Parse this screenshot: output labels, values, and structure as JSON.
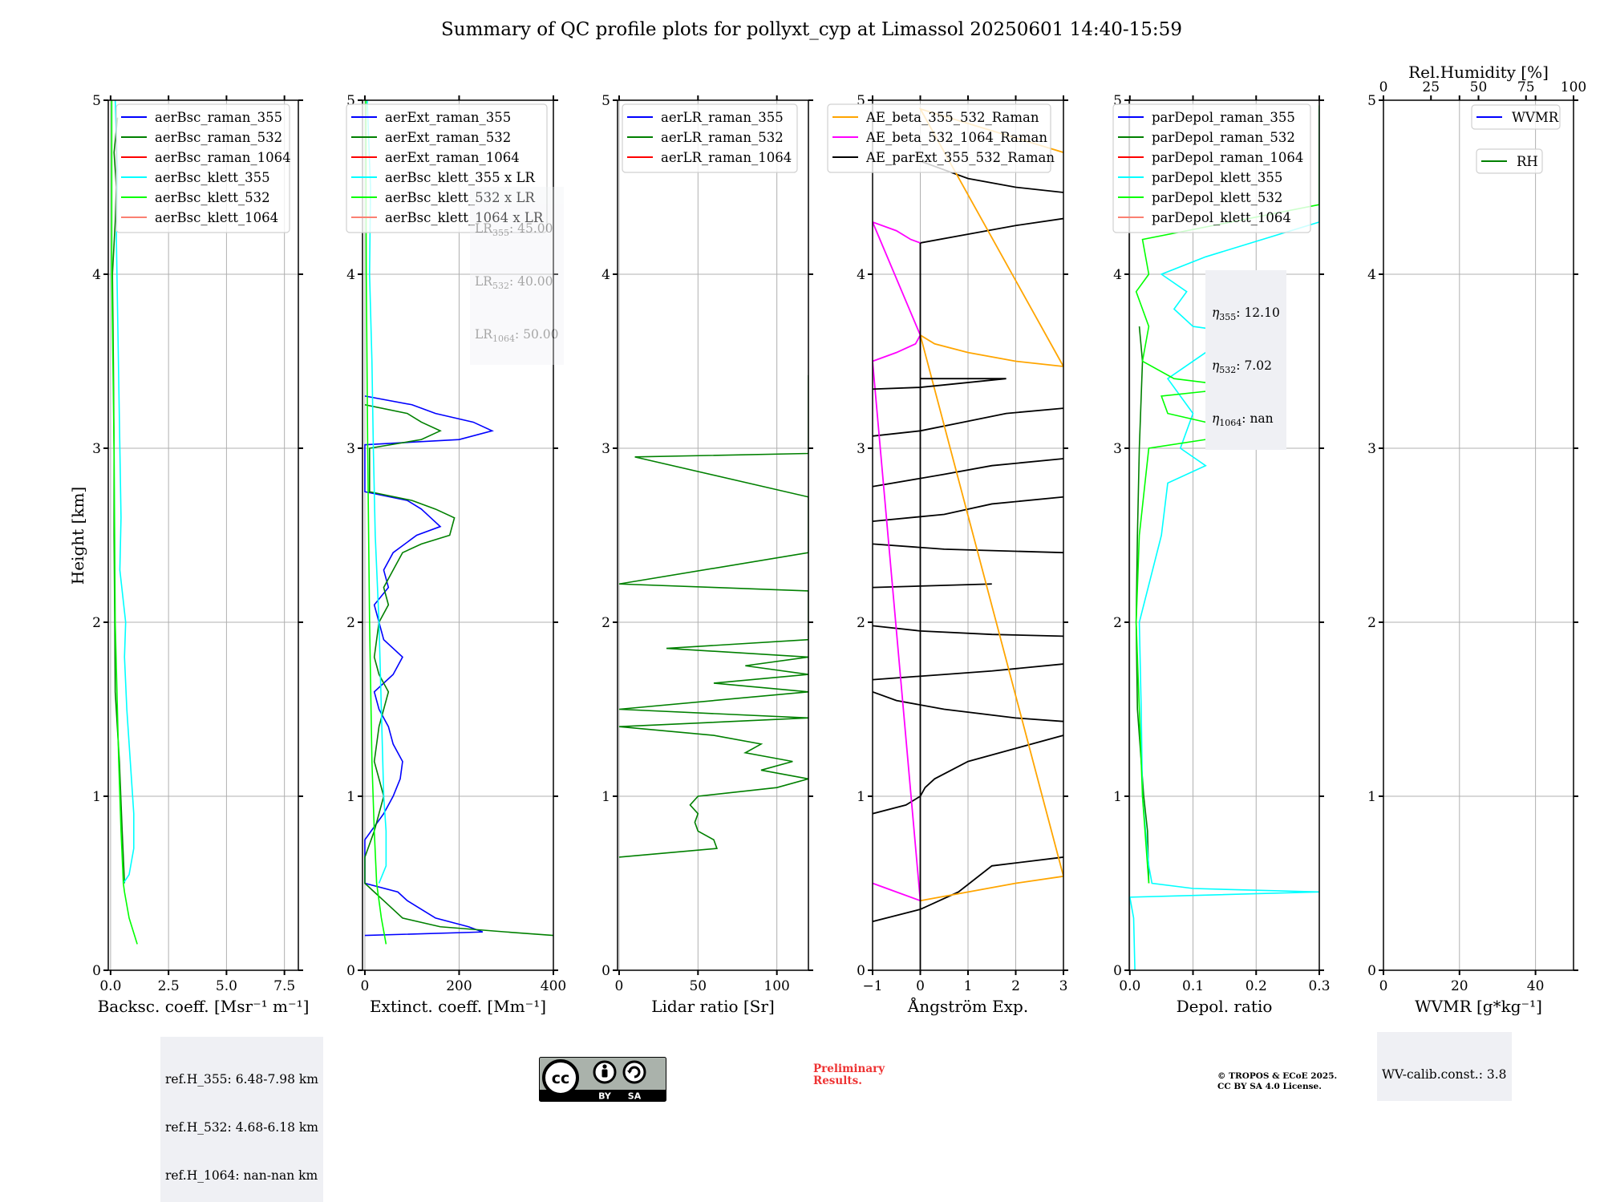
{
  "title": "Summary of QC profile plots for pollyxt_cyp at Limassol 20250601 14:40-15:59",
  "ylabel": "Height [km]",
  "colors": {
    "blue": "#0000ff",
    "green": "#008000",
    "red": "#ff0000",
    "cyan": "#00ffff",
    "lime": "#00ff00",
    "salmon": "#fa8072",
    "orange": "#ffa500",
    "magenta": "#ff00ff",
    "black": "#000000",
    "grid": "#b0b0b0",
    "prelim": "#ee3333",
    "infobox_bg": "#eff0f4"
  },
  "info": {
    "ref_h": [
      "ref.H_355: 6.48-7.98 km",
      "ref.H_532: 4.68-6.18 km",
      "ref.H_1064: nan-nan km"
    ],
    "eta": [
      {
        "label": "η",
        "sub": "355",
        "value": ": 12.10"
      },
      {
        "label": "η",
        "sub": "532",
        "value": ": 7.02"
      },
      {
        "label": "η",
        "sub": "1064",
        "value": ": nan"
      }
    ],
    "lr_fixed": [
      {
        "label": "LR",
        "sub": "355",
        "value": ": 45.00"
      },
      {
        "label": "LR",
        "sub": "532",
        "value": ": 40.00"
      },
      {
        "label": "LR",
        "sub": "1064",
        "value": ": 50.00"
      }
    ],
    "wv_calib": "WV-calib.const.: 3.8",
    "preliminary": [
      "Preliminary",
      "Results."
    ],
    "copyright": [
      "© TROPOS & ECoE 2025.",
      "CC BY SA 4.0 License."
    ],
    "cc_badge": {
      "cc": "cc",
      "by": "BY",
      "sa": "SA"
    }
  },
  "chart_data": [
    {
      "type": "line",
      "panel": "backscatter",
      "xlabel": "Backsc. coeff. [Msr⁻¹ m⁻¹]",
      "xlim": [
        -0.1,
        8.1
      ],
      "ylim": [
        0,
        5
      ],
      "xticks": [
        0.0,
        2.5,
        5.0,
        7.5
      ],
      "xticklabels": [
        "0.0",
        "2.5",
        "5.0",
        "7.5"
      ],
      "yticks": [
        0,
        1,
        2,
        3,
        4,
        5
      ],
      "grid": true,
      "legend": "upper-right",
      "series": [
        {
          "name": "aerBsc_raman_355",
          "color": "blue",
          "y": [],
          "x": []
        },
        {
          "name": "aerBsc_raman_532",
          "color": "green",
          "y": [
            0.5,
            0.8,
            1.2,
            1.6,
            2.0,
            2.5,
            3.0,
            3.5,
            4.0,
            4.3,
            4.5,
            4.7,
            4.9
          ],
          "x": [
            0.6,
            0.5,
            0.38,
            0.2,
            0.18,
            0.15,
            0.15,
            0.12,
            0.08,
            0.2,
            0.25,
            0.15,
            0.3
          ]
        },
        {
          "name": "aerBsc_raman_1064",
          "color": "red",
          "y": [],
          "x": []
        },
        {
          "name": "aerBsc_klett_355",
          "color": "cyan",
          "y": [
            0.5,
            0.55,
            0.7,
            0.9,
            1.2,
            1.5,
            1.8,
            2.0,
            2.3,
            2.6,
            3.0,
            3.4,
            3.8,
            4.2,
            4.6,
            5.0
          ],
          "x": [
            0.55,
            0.8,
            1.0,
            1.0,
            0.85,
            0.7,
            0.6,
            0.65,
            0.4,
            0.45,
            0.4,
            0.35,
            0.3,
            0.25,
            0.3,
            0.2
          ]
        },
        {
          "name": "aerBsc_klett_532",
          "color": "lime",
          "y": [
            0.15,
            0.3,
            0.45,
            0.5,
            0.8,
            1.2,
            2.0,
            3.0,
            4.0,
            5.0
          ],
          "x": [
            1.15,
            0.8,
            0.6,
            0.55,
            0.45,
            0.35,
            0.2,
            0.15,
            0.05,
            0.05
          ]
        },
        {
          "name": "aerBsc_klett_1064",
          "color": "salmon",
          "y": [],
          "x": []
        }
      ]
    },
    {
      "type": "line",
      "panel": "extinction",
      "xlabel": "Extinct. coeff. [Mm⁻¹]",
      "xlim": [
        -5,
        400
      ],
      "ylim": [
        0,
        5
      ],
      "xticks": [
        0,
        200,
        400
      ],
      "xticklabels": [
        "0",
        "200",
        "400"
      ],
      "yticks": [
        0,
        1,
        2,
        3,
        4,
        5
      ],
      "grid": true,
      "legend": "upper-right",
      "series": [
        {
          "name": "aerExt_raman_355",
          "color": "blue",
          "y": [
            0.2,
            0.22,
            0.25,
            0.3,
            0.35,
            0.4,
            0.45,
            0.5,
            0.75,
            0.9,
            1.0,
            1.1,
            1.2,
            1.3,
            1.4,
            1.5,
            1.6,
            1.7,
            1.8,
            1.9,
            2.0,
            2.1,
            2.2,
            2.3,
            2.4,
            2.5,
            2.55,
            2.6,
            2.65,
            2.7,
            2.75,
            3.02,
            3.05,
            3.1,
            3.15,
            3.2,
            3.25,
            3.3
          ],
          "x": [
            0,
            250,
            220,
            150,
            120,
            90,
            70,
            0,
            0,
            40,
            60,
            75,
            80,
            60,
            50,
            30,
            20,
            60,
            80,
            40,
            30,
            20,
            50,
            40,
            60,
            110,
            160,
            140,
            120,
            90,
            0,
            0,
            200,
            270,
            230,
            150,
            100,
            0
          ]
        },
        {
          "name": "aerExt_raman_532",
          "color": "green",
          "y": [
            0.2,
            0.22,
            0.25,
            0.3,
            0.4,
            0.45,
            0.5,
            0.65,
            0.8,
            0.9,
            1.0,
            1.2,
            1.4,
            1.6,
            1.7,
            1.8,
            2.0,
            2.1,
            2.2,
            2.3,
            2.4,
            2.45,
            2.5,
            2.6,
            2.65,
            2.7,
            2.75,
            3.0,
            3.05,
            3.1,
            3.15,
            3.2,
            3.25
          ],
          "x": [
            400,
            300,
            160,
            80,
            40,
            20,
            0,
            0,
            20,
            30,
            40,
            20,
            30,
            50,
            30,
            20,
            30,
            50,
            40,
            60,
            80,
            120,
            180,
            190,
            150,
            100,
            10,
            10,
            120,
            160,
            120,
            90,
            0
          ]
        },
        {
          "name": "aerExt_raman_1064",
          "color": "red",
          "y": [],
          "x": []
        },
        {
          "name": "aerBsc_klett_355 x LR",
          "color": "cyan",
          "y": [
            0.5,
            0.6,
            0.8,
            1.0,
            1.5,
            2.0,
            2.5,
            3.0,
            3.5,
            4.0,
            4.5,
            5.0
          ],
          "x": [
            30,
            45,
            45,
            40,
            35,
            30,
            22,
            18,
            15,
            10,
            12,
            5
          ]
        },
        {
          "name": "aerBsc_klett_532 x LR",
          "color": "lime",
          "y": [
            0.15,
            0.3,
            0.5,
            0.8,
            1.2,
            2.0,
            3.0,
            4.0,
            5.0
          ],
          "x": [
            45,
            35,
            25,
            20,
            15,
            10,
            6,
            3,
            2
          ]
        },
        {
          "name": "aerBsc_klett_1064 x LR",
          "color": "salmon",
          "y": [],
          "x": []
        }
      ]
    },
    {
      "type": "line",
      "panel": "lidar_ratio",
      "xlabel": "Lidar ratio [Sr]",
      "xlim": [
        -1,
        120
      ],
      "ylim": [
        0,
        5
      ],
      "xticks": [
        0,
        50,
        100
      ],
      "xticklabels": [
        "0",
        "50",
        "100"
      ],
      "yticks": [
        0,
        1,
        2,
        3,
        4,
        5
      ],
      "grid": true,
      "legend": "upper-right",
      "series": [
        {
          "name": "aerLR_raman_355",
          "color": "blue",
          "y": [],
          "x": []
        },
        {
          "name": "aerLR_raman_532",
          "color": "green",
          "y": [
            0.65,
            0.7,
            0.75,
            0.8,
            0.85,
            0.9,
            0.95,
            1.0,
            1.05,
            1.1,
            1.15,
            1.2,
            1.25,
            1.3,
            1.35,
            1.4,
            1.45,
            1.5,
            1.6,
            1.65,
            1.7,
            1.75,
            1.8,
            1.85,
            1.9,
            2.18,
            2.2,
            2.22,
            2.4,
            2.42,
            2.72,
            2.95,
            2.97,
            3.0,
            3.02,
            3.25,
            3.38,
            3.42
          ],
          "x": [
            0,
            62,
            60,
            50,
            48,
            50,
            45,
            50,
            100,
            120,
            90,
            110,
            80,
            90,
            60,
            0,
            120,
            0,
            120,
            60,
            120,
            80,
            120,
            30,
            120,
            120,
            60,
            0,
            120,
            120,
            120,
            10,
            120,
            120,
            120,
            120,
            120,
            120
          ]
        },
        {
          "name": "aerLR_raman_1064",
          "color": "red",
          "y": [],
          "x": []
        }
      ]
    },
    {
      "type": "line",
      "panel": "angstrom",
      "xlabel": "Ångström Exp.",
      "xlim": [
        -1,
        3
      ],
      "ylim": [
        0,
        5
      ],
      "xticks": [
        -1,
        0,
        1,
        2,
        3
      ],
      "xticklabels": [
        "−1",
        "0",
        "1",
        "2",
        "3"
      ],
      "yticks": [
        0,
        1,
        2,
        3,
        4,
        5
      ],
      "grid": true,
      "legend": "upper-left",
      "series": [
        {
          "name": "AE_beta_355_532_Raman",
          "color": "orange",
          "y": [
            0.4,
            0.45,
            0.5,
            0.54,
            3.65,
            3.6,
            3.55,
            3.5,
            3.47,
            4.95,
            4.7
          ],
          "x": [
            0,
            1,
            2,
            3,
            0,
            0.3,
            1,
            2,
            3,
            0,
            3
          ]
        },
        {
          "name": "AE_beta_532_1064_Raman",
          "color": "magenta",
          "y": [
            0.5,
            0.45,
            0.4,
            3.5,
            3.55,
            3.6,
            3.65,
            4.3,
            4.25,
            4.2,
            4.18
          ],
          "x": [
            -1,
            -0.5,
            0,
            -1,
            -0.5,
            -0.1,
            0,
            -1,
            -0.5,
            -0.2,
            0
          ]
        },
        {
          "name": "AE_parExt_355_532_Raman",
          "color": "black",
          "y": [
            0,
            0.4,
            4.18,
            3.4,
            3.4,
            3.35,
            3.34
          ],
          "x": [
            0,
            0,
            0,
            0,
            1.8,
            0,
            -1
          ]
        }
      ],
      "extra_black_segments": [
        {
          "y": [
            0.28,
            0.35,
            0.45,
            0.6,
            0.65
          ],
          "x": [
            -1,
            0,
            0.8,
            1.5,
            3
          ]
        },
        {
          "y": [
            0.9,
            0.95,
            1.0,
            1.05,
            1.1,
            1.2,
            1.35
          ],
          "x": [
            -1,
            -0.3,
            0.0,
            0.1,
            0.3,
            1.0,
            3
          ]
        },
        {
          "y": [
            1.6,
            1.55,
            1.5,
            1.45,
            1.43
          ],
          "x": [
            -1,
            -0.5,
            0.5,
            2,
            3
          ]
        },
        {
          "y": [
            1.67,
            1.7,
            1.72,
            1.76
          ],
          "x": [
            -1,
            0.5,
            1.5,
            3
          ]
        },
        {
          "y": [
            1.98,
            1.95,
            1.93,
            1.92
          ],
          "x": [
            -1,
            0,
            1.5,
            3
          ]
        },
        {
          "y": [
            2.2,
            2.22
          ],
          "x": [
            -1,
            1.5
          ]
        },
        {
          "y": [
            2.45,
            2.42,
            2.4
          ],
          "x": [
            -1,
            0.5,
            3
          ]
        },
        {
          "y": [
            2.58,
            2.62,
            2.68,
            2.72
          ],
          "x": [
            -1,
            0.5,
            1.5,
            3
          ]
        },
        {
          "y": [
            2.78,
            2.85,
            2.9,
            2.94
          ],
          "x": [
            -1,
            0.5,
            1.5,
            3
          ]
        },
        {
          "y": [
            3.07,
            3.1,
            3.15,
            3.2,
            3.23
          ],
          "x": [
            -1,
            0,
            0.9,
            1.8,
            3
          ]
        },
        {
          "y": [
            4.18,
            4.22,
            4.28,
            4.32
          ],
          "x": [
            0,
            0.8,
            2,
            3
          ]
        },
        {
          "y": [
            4.65,
            4.55,
            4.5,
            4.47
          ],
          "x": [
            0,
            1,
            2,
            3
          ]
        }
      ]
    },
    {
      "type": "line",
      "panel": "depol",
      "xlabel": "Depol. ratio",
      "xlim": [
        -0.001,
        0.3
      ],
      "ylim": [
        0,
        5
      ],
      "xticks": [
        0.0,
        0.1,
        0.2,
        0.3
      ],
      "xticklabels": [
        "0.0",
        "0.1",
        "0.2",
        "0.3"
      ],
      "yticks": [
        0,
        1,
        2,
        3,
        4,
        5
      ],
      "grid": true,
      "legend": "upper-left",
      "series": [
        {
          "name": "parDepol_raman_355",
          "color": "blue",
          "y": [],
          "x": []
        },
        {
          "name": "parDepol_raman_532",
          "color": "green",
          "y": [
            0.5,
            0.8,
            1.0,
            1.5,
            2.0,
            2.5,
            3.0,
            3.3,
            3.5,
            3.7
          ],
          "x": [
            0.03,
            0.028,
            0.022,
            0.012,
            0.01,
            0.012,
            0.015,
            0.018,
            0.02,
            0.015
          ]
        },
        {
          "name": "parDepol_raman_1064",
          "color": "red",
          "y": [],
          "x": []
        },
        {
          "name": "parDepol_klett_355",
          "color": "cyan",
          "y": [
            0.0,
            0.3,
            0.42,
            0.45,
            0.47,
            0.5,
            0.6,
            1.0,
            1.5,
            2.0,
            2.5,
            2.8,
            2.9,
            3.0,
            3.2,
            3.4,
            3.6,
            3.65,
            3.7,
            3.8,
            3.9,
            4.0,
            4.1,
            4.3,
            4.5,
            4.7,
            4.95
          ],
          "x": [
            0.008,
            0.006,
            0.0,
            0.3,
            0.1,
            0.035,
            0.03,
            0.02,
            0.018,
            0.015,
            0.05,
            0.06,
            0.12,
            0.08,
            0.1,
            0.06,
            0.14,
            0.2,
            0.1,
            0.07,
            0.09,
            0.05,
            0.12,
            0.3,
            0.3,
            0.3,
            0.3
          ]
        },
        {
          "name": "parDepol_klett_532",
          "color": "lime",
          "y": [
            0.5,
            1.0,
            2.0,
            2.5,
            3.0,
            3.05,
            3.1,
            3.2,
            3.3,
            3.35,
            3.4,
            3.5,
            3.7,
            3.9,
            4.0,
            4.2,
            4.4,
            4.6,
            4.8,
            4.97
          ],
          "x": [
            0.03,
            0.02,
            0.01,
            0.015,
            0.03,
            0.12,
            0.18,
            0.06,
            0.05,
            0.18,
            0.07,
            0.02,
            0.03,
            0.01,
            0.03,
            0.02,
            0.3,
            0.3,
            0.3,
            0.3
          ]
        },
        {
          "name": "parDepol_klett_1064",
          "color": "salmon",
          "y": [],
          "x": []
        }
      ]
    },
    {
      "type": "line",
      "panel": "wv",
      "xlabel": "WVMR [g*kg⁻¹]",
      "xlim": [
        0,
        50
      ],
      "ylim": [
        0,
        5
      ],
      "xticks": [
        0,
        20,
        40
      ],
      "xticklabels": [
        "0",
        "20",
        "40"
      ],
      "top_axis": {
        "label": "Rel.Humidity [%]",
        "xlim": [
          0,
          100
        ],
        "xticks": [
          0,
          25,
          50,
          75,
          100
        ],
        "xticklabels": [
          "0",
          "25",
          "50",
          "75",
          "100"
        ]
      },
      "yticks": [
        0,
        1,
        2,
        3,
        4,
        5
      ],
      "grid": true,
      "legend": "upper-right",
      "series": [
        {
          "name": "WVMR",
          "color": "blue",
          "y": [],
          "x": []
        },
        {
          "name": "RH",
          "color": "green",
          "y": [],
          "x": []
        }
      ]
    }
  ]
}
